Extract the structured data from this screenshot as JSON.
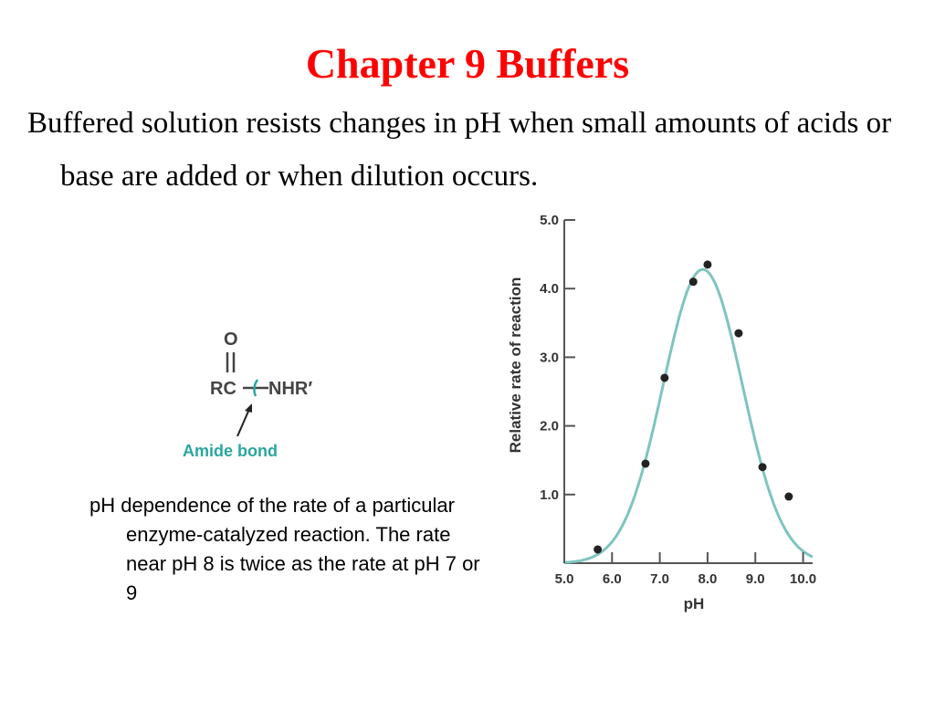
{
  "slide": {
    "title": "Chapter 9 Buffers",
    "body": "Buffered solution resists changes in pH when small amounts of acids or base are added or when dilution occurs.",
    "caption": "pH dependence of the rate of a particular enzyme-catalyzed reaction. The rate near pH 8 is twice as the rate at pH 7 or 9"
  },
  "amide": {
    "oxygen": "O",
    "left_group": "RC",
    "right_group": "NHR′",
    "label": "Amide bond",
    "label_color": "#2aa6a0"
  },
  "chart_data": {
    "type": "scatter",
    "xlabel": "pH",
    "ylabel": "Relative rate of reaction",
    "xlim": [
      5.0,
      10.2
    ],
    "ylim": [
      0,
      5.0
    ],
    "x_ticks": [
      "5.0",
      "6.0",
      "7.0",
      "8.0",
      "9.0",
      "10.0"
    ],
    "y_ticks": [
      "1.0",
      "2.0",
      "3.0",
      "4.0",
      "5.0"
    ],
    "points": [
      {
        "x": 5.7,
        "y": 0.2
      },
      {
        "x": 6.7,
        "y": 1.45
      },
      {
        "x": 7.1,
        "y": 2.7
      },
      {
        "x": 7.7,
        "y": 4.1
      },
      {
        "x": 8.0,
        "y": 4.35
      },
      {
        "x": 8.65,
        "y": 3.35
      },
      {
        "x": 9.15,
        "y": 1.4
      },
      {
        "x": 9.7,
        "y": 0.97
      }
    ],
    "fit_curve": {
      "type": "gaussian",
      "peak_x": 7.9,
      "peak_y": 4.28,
      "sigma": 0.83
    },
    "curve_color": "#7fc4bf",
    "point_color": "#222222",
    "grid": false
  }
}
